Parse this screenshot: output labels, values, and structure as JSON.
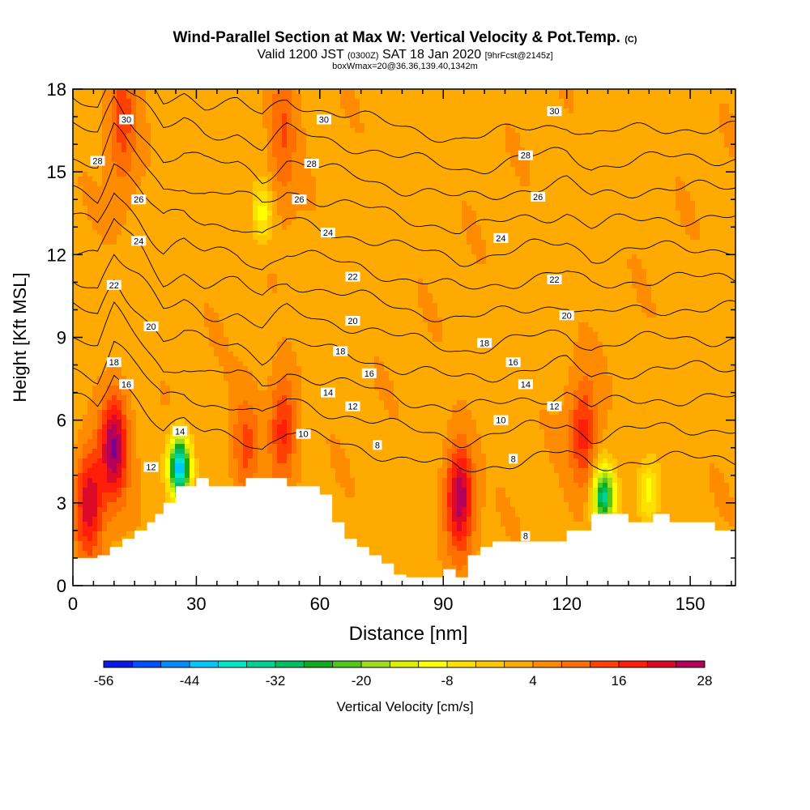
{
  "title": {
    "main": "Wind-Parallel Section at Max W: Vertical Velocity & Pot.Temp.",
    "main_tag": "(C)",
    "valid_prefix": "Valid 1200 JST",
    "valid_utc": "(0300Z)",
    "valid_date": "SAT 18 Jan 2020",
    "forecast": "[9hrFcst@2145z]",
    "box": "boxWmax=20@36.36,139.40,1342m"
  },
  "chart_data": {
    "type": "heatmap",
    "xlabel": "Distance [nm]",
    "ylabel": "Height [Kft MSL]",
    "xlim": [
      0,
      161
    ],
    "ylim": [
      0,
      18
    ],
    "xticks": [
      0,
      30,
      60,
      90,
      120,
      150
    ],
    "yticks": [
      0,
      3,
      6,
      9,
      12,
      15,
      18
    ],
    "colorbar": {
      "label": "Vertical Velocity [cm/s]",
      "tick_values": [
        -56,
        -44,
        -32,
        -20,
        -8,
        4,
        16,
        28
      ],
      "tick_labels": [
        "-56",
        "-44",
        "-32",
        "-20",
        "-8",
        "4",
        "16",
        "28"
      ],
      "levels": [
        -56,
        -52,
        -48,
        -44,
        -40,
        -36,
        -32,
        -28,
        -24,
        -20,
        -16,
        -12,
        -8,
        -4,
        0,
        4,
        8,
        12,
        16,
        20,
        24,
        28
      ],
      "colors": [
        "#0a1ae6",
        "#0050ff",
        "#008cff",
        "#00c8ff",
        "#00e6c8",
        "#00d296",
        "#00be64",
        "#14aa1e",
        "#50c81e",
        "#a0dc1e",
        "#dcf000",
        "#ffff00",
        "#ffe100",
        "#ffc800",
        "#ffaa00",
        "#ff8c00",
        "#ff6e00",
        "#ff4000",
        "#ff1e0a",
        "#dc0a28",
        "#b4005a",
        "#78008c"
      ]
    },
    "field_features": [
      {
        "name": "updraft",
        "x": 10,
        "y": 5.0,
        "w": 28
      },
      {
        "name": "updraft",
        "x": 4,
        "y": 3.0,
        "w": 24
      },
      {
        "name": "updraft",
        "x": 94,
        "y": 3.2,
        "w": 28
      },
      {
        "name": "updraft",
        "x": 124,
        "y": 5.5,
        "w": 18
      },
      {
        "name": "updraft",
        "x": 51,
        "y": 5.7,
        "w": 18
      },
      {
        "name": "updraft",
        "x": 42,
        "y": 5.0,
        "w": 14
      },
      {
        "name": "updraft",
        "x": 12,
        "y": 17.0,
        "w": 14
      },
      {
        "name": "updraft",
        "x": 51,
        "y": 16.5,
        "w": 12
      },
      {
        "name": "downdraft",
        "x": 26,
        "y": 4.3,
        "w": -44
      },
      {
        "name": "downdraft",
        "x": 129,
        "y": 3.2,
        "w": -32
      },
      {
        "name": "downdraft",
        "x": 46,
        "y": 13.5,
        "w": -10
      },
      {
        "name": "downdraft",
        "x": 140,
        "y": 3.4,
        "w": -10
      }
    ],
    "terrain": {
      "x": [
        0,
        6,
        6,
        9,
        9,
        12,
        12,
        15,
        15,
        18,
        18,
        20,
        20,
        22,
        22,
        25,
        25,
        30,
        30,
        33,
        33,
        42,
        42,
        52,
        52,
        60,
        60,
        63,
        63,
        66,
        66,
        69,
        69,
        72,
        72,
        75,
        75,
        78,
        78,
        81,
        81,
        90,
        90,
        93,
        93,
        96,
        96,
        99,
        99,
        102,
        102,
        117,
        117,
        120,
        120,
        126,
        126,
        135,
        135,
        141,
        141,
        145,
        145,
        156,
        156,
        159,
        159,
        161
      ],
      "y": [
        1.0,
        1.0,
        1.1,
        1.1,
        1.4,
        1.4,
        1.7,
        1.7,
        2.0,
        2.0,
        2.3,
        2.3,
        2.6,
        2.6,
        3.0,
        3.0,
        3.6,
        3.6,
        3.9,
        3.9,
        3.6,
        3.6,
        3.9,
        3.9,
        3.6,
        3.6,
        3.3,
        3.3,
        2.3,
        2.3,
        1.7,
        1.7,
        1.4,
        1.4,
        1.1,
        1.1,
        0.8,
        0.8,
        0.4,
        0.4,
        0.3,
        0.3,
        0.6,
        0.6,
        0.3,
        0.3,
        1.1,
        1.1,
        1.4,
        1.4,
        1.6,
        1.6,
        1.6,
        1.6,
        2.0,
        2.0,
        2.6,
        2.6,
        2.3,
        2.3,
        2.6,
        2.6,
        2.3,
        2.3,
        2.0,
        2.0,
        2.0,
        2.0
      ]
    },
    "theta_base": {
      "x": [
        0,
        6,
        10,
        16,
        22,
        27,
        32,
        40,
        46,
        52,
        60,
        70,
        80,
        88,
        94,
        100,
        110,
        120,
        126,
        134,
        142,
        150,
        161
      ],
      "y": [
        6.8,
        6.5,
        7.8,
        6.8,
        5.6,
        5.9,
        5.5,
        5.5,
        5.0,
        5.6,
        5.3,
        5.0,
        4.6,
        4.4,
        4.2,
        4.3,
        4.6,
        4.8,
        4.3,
        4.5,
        4.6,
        4.6,
        4.6
      ]
    },
    "theta_lines": [
      {
        "theta": 8,
        "label_x": 74,
        "label_dy": -0.5
      },
      {
        "theta": 10,
        "label_x": 107,
        "label_dy": 0.5
      },
      {
        "theta": 12,
        "label_x": 67
      },
      {
        "theta": 14,
        "label_x": 62
      },
      {
        "theta": 16,
        "label_x": 72
      },
      {
        "theta": 18,
        "label_x": 65
      },
      {
        "theta": 20,
        "label_x": 66
      },
      {
        "theta": 22,
        "label_x": 68
      },
      {
        "theta": 24,
        "label_x": 61
      },
      {
        "theta": 26,
        "label_x": 55
      },
      {
        "theta": 28,
        "label_x": 58
      },
      {
        "theta": 30,
        "label_x": 61
      }
    ],
    "theta_labels": [
      {
        "text": "30",
        "x": 13,
        "y": 16.9
      },
      {
        "text": "30",
        "x": 61,
        "y": 16.9
      },
      {
        "text": "30",
        "x": 117,
        "y": 17.2
      },
      {
        "text": "28",
        "x": 6,
        "y": 15.4
      },
      {
        "text": "28",
        "x": 58,
        "y": 15.3
      },
      {
        "text": "28",
        "x": 110,
        "y": 15.6
      },
      {
        "text": "26",
        "x": 16,
        "y": 14.0
      },
      {
        "text": "26",
        "x": 55,
        "y": 14.0
      },
      {
        "text": "26",
        "x": 113,
        "y": 14.1
      },
      {
        "text": "24",
        "x": 16,
        "y": 12.5
      },
      {
        "text": "24",
        "x": 62,
        "y": 12.8
      },
      {
        "text": "24",
        "x": 104,
        "y": 12.6
      },
      {
        "text": "22",
        "x": 10,
        "y": 10.9
      },
      {
        "text": "22",
        "x": 68,
        "y": 11.2
      },
      {
        "text": "22",
        "x": 117,
        "y": 11.1
      },
      {
        "text": "20",
        "x": 19,
        "y": 9.4
      },
      {
        "text": "20",
        "x": 68,
        "y": 9.6
      },
      {
        "text": "20",
        "x": 120,
        "y": 9.8
      },
      {
        "text": "18",
        "x": 10,
        "y": 8.1
      },
      {
        "text": "18",
        "x": 65,
        "y": 8.5
      },
      {
        "text": "18",
        "x": 100,
        "y": 8.8
      },
      {
        "text": "16",
        "x": 13,
        "y": 7.3
      },
      {
        "text": "16",
        "x": 72,
        "y": 7.7
      },
      {
        "text": "16",
        "x": 107,
        "y": 8.1
      },
      {
        "text": "14",
        "x": 26,
        "y": 5.6
      },
      {
        "text": "14",
        "x": 62,
        "y": 7.0
      },
      {
        "text": "14",
        "x": 110,
        "y": 7.3
      },
      {
        "text": "12",
        "x": 19,
        "y": 4.3
      },
      {
        "text": "12",
        "x": 68,
        "y": 6.5
      },
      {
        "text": "12",
        "x": 117,
        "y": 6.5
      },
      {
        "text": "10",
        "x": 56,
        "y": 5.5
      },
      {
        "text": "10",
        "x": 104,
        "y": 6.0
      },
      {
        "text": "8",
        "x": 74,
        "y": 5.1
      },
      {
        "text": "8",
        "x": 107,
        "y": 4.6
      },
      {
        "text": "8",
        "x": 110,
        "y": 1.8
      }
    ]
  }
}
